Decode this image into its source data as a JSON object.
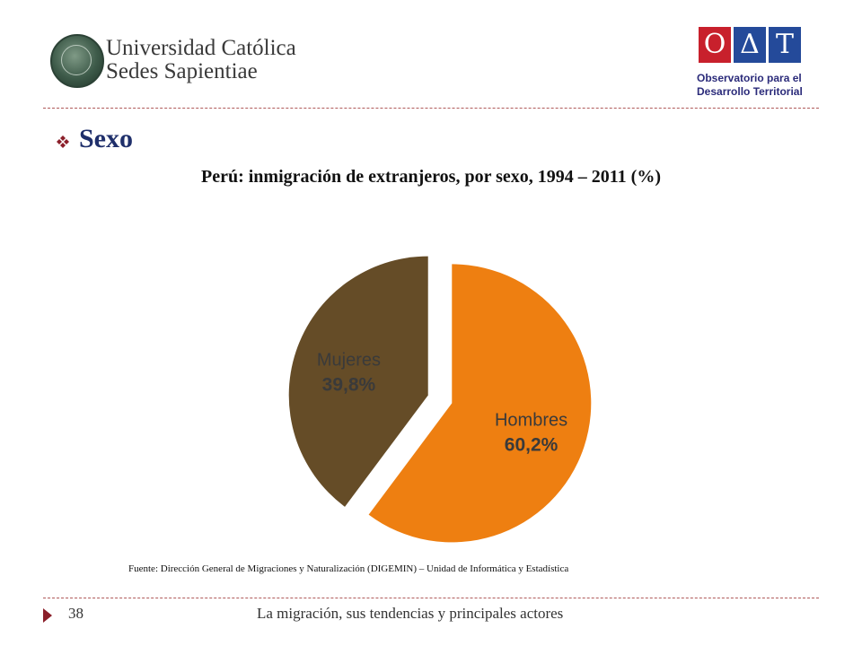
{
  "header": {
    "university": {
      "line1": "Universidad Católica",
      "line2": "Sedes Sapientiae"
    },
    "oat_logo": {
      "letters": [
        "O",
        "Δ",
        "T"
      ],
      "line1": "Observatorio para el",
      "line2": "Desarrollo Territorial",
      "colors": {
        "red": "#c8202c",
        "blue": "#244a9a"
      }
    }
  },
  "section": {
    "label": "Sexo"
  },
  "chart_data": {
    "type": "pie",
    "title": "Perú: inmigración de extranjeros, por sexo, 1994 – 2011 (%)",
    "slices": [
      {
        "name": "Hombres",
        "value": 60.2,
        "label": "60,2%",
        "color": "#ee7f11",
        "exploded": true
      },
      {
        "name": "Mujeres",
        "value": 39.8,
        "label": "39,8%",
        "color": "#654c27",
        "exploded": true
      }
    ]
  },
  "source": "Fuente: Dirección General de Migraciones y Naturalización (DIGEMIN) – Unidad de Informática y Estadística",
  "footer": {
    "page": "38",
    "text": "La migración, sus tendencias y principales actores"
  },
  "colors": {
    "accent": "#8b1f2a",
    "heading": "#1f2f6b"
  }
}
